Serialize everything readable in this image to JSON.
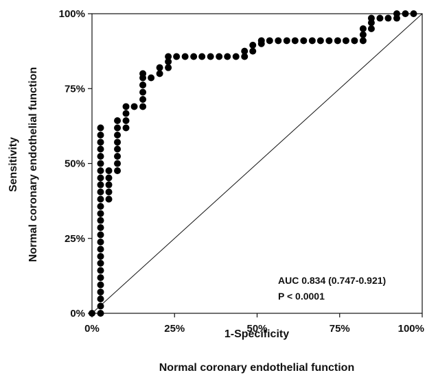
{
  "chart_data": {
    "type": "scatter",
    "subtype": "roc-curve",
    "xlabel": "1-Specificity",
    "xlabel_sub": "Normal coronary endothelial function",
    "ylabel": "Sensitivity",
    "ylabel_sub": "Normal coronary endothelial function",
    "xlim": [
      0,
      100
    ],
    "ylim": [
      0,
      100
    ],
    "x_ticks": [
      "0%",
      "25%",
      "50%",
      "75%",
      "100%"
    ],
    "y_ticks": [
      "0%",
      "25%",
      "50%",
      "75%",
      "100%"
    ],
    "grid": false,
    "legend": "none",
    "reference_line": "diagonal",
    "annotations": [
      "AUC 0.834 (0.747-0.921)",
      "P < 0.0001"
    ],
    "x": [
      0,
      2.6,
      2.6,
      2.6,
      2.6,
      2.6,
      2.6,
      2.6,
      2.6,
      2.6,
      2.6,
      2.6,
      2.6,
      2.6,
      2.6,
      2.6,
      2.6,
      2.6,
      2.6,
      2.6,
      2.6,
      2.6,
      2.6,
      2.6,
      2.6,
      2.6,
      2.6,
      2.6,
      5.1,
      5.1,
      5.1,
      5.1,
      5.1,
      7.7,
      7.7,
      7.7,
      7.7,
      7.7,
      7.7,
      7.7,
      7.7,
      10.3,
      10.3,
      10.3,
      10.3,
      12.8,
      15.4,
      15.4,
      15.4,
      15.4,
      15.4,
      15.4,
      15.4,
      17.9,
      20.5,
      20.5,
      23.1,
      23.1,
      23.1,
      25.6,
      28.2,
      30.8,
      33.3,
      35.9,
      38.5,
      41.0,
      43.6,
      46.2,
      46.2,
      48.7,
      48.7,
      51.3,
      51.3,
      53.8,
      56.4,
      59.0,
      61.5,
      64.1,
      66.7,
      69.2,
      71.8,
      74.4,
      76.9,
      79.5,
      82.1,
      82.1,
      82.1,
      84.6,
      84.6,
      84.6,
      87.2,
      89.7,
      92.3,
      92.3,
      94.9,
      97.4
    ],
    "y": [
      0,
      0,
      2.4,
      4.8,
      7.1,
      9.5,
      11.9,
      14.3,
      16.7,
      19.0,
      21.4,
      23.8,
      26.2,
      28.6,
      31.0,
      33.3,
      35.7,
      38.1,
      40.5,
      42.9,
      45.2,
      47.6,
      50.0,
      52.4,
      54.8,
      57.1,
      59.5,
      61.9,
      38.1,
      40.5,
      42.9,
      45.2,
      47.6,
      47.6,
      50.0,
      52.4,
      54.8,
      57.1,
      59.5,
      61.9,
      64.3,
      61.9,
      64.3,
      66.7,
      69.0,
      69.0,
      69.0,
      71.4,
      73.8,
      76.2,
      78.6,
      80.0,
      76.2,
      78.6,
      80.0,
      82.0,
      82.0,
      84.0,
      85.7,
      85.7,
      85.7,
      85.7,
      85.7,
      85.7,
      85.7,
      85.7,
      85.7,
      85.7,
      87.5,
      87.5,
      89.5,
      90.0,
      91.0,
      91.0,
      91.0,
      91.0,
      91.0,
      91.0,
      91.0,
      91.0,
      91.0,
      91.0,
      91.0,
      91.0,
      91.0,
      93.0,
      95.0,
      95.0,
      97.0,
      98.5,
      98.5,
      98.5,
      98.5,
      100,
      100,
      100
    ]
  }
}
